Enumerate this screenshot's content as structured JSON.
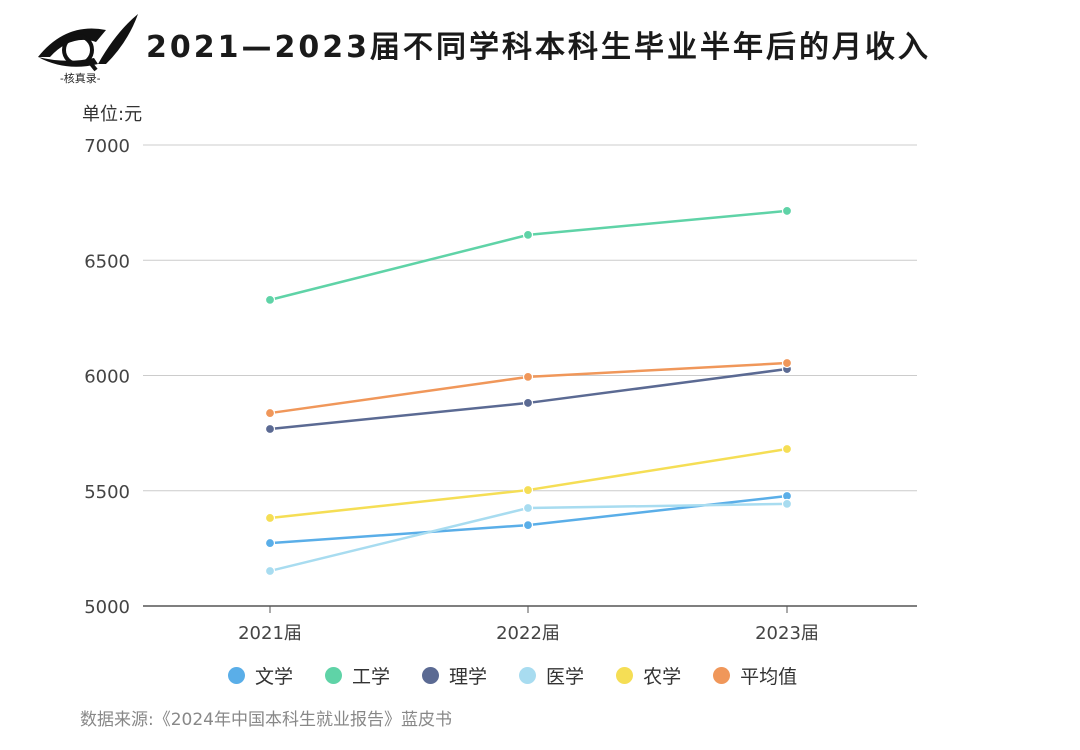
{
  "logo_text": "-核真录-",
  "chart_data": {
    "type": "line",
    "title": "2021—2023届不同学科本科生毕业半年后的月收入",
    "unit_label": "单位:元",
    "categories": [
      "2021届",
      "2022届",
      "2023届"
    ],
    "ylim": [
      5000,
      7000
    ],
    "yticks": [
      "5000",
      "5500",
      "6000",
      "6500",
      "7000"
    ],
    "grid": true,
    "legend_position": "bottom",
    "series": [
      {
        "name": "文学",
        "color": "#5aaee8",
        "values": [
          5273,
          5351,
          5477
        ]
      },
      {
        "name": "工学",
        "color": "#5fd3a7",
        "values": [
          6328,
          6610,
          6714
        ]
      },
      {
        "name": "理学",
        "color": "#5b6a93",
        "values": [
          5768,
          5881,
          6028
        ]
      },
      {
        "name": "医学",
        "color": "#a8dcf0",
        "values": [
          5152,
          5425,
          5443
        ]
      },
      {
        "name": "农学",
        "color": "#f5de55",
        "values": [
          5382,
          5503,
          5681
        ]
      },
      {
        "name": "平均值",
        "color": "#f0975a",
        "values": [
          5837,
          5994,
          6054
        ]
      }
    ]
  },
  "source": "数据来源:《2024年中国本科生就业报告》蓝皮书"
}
